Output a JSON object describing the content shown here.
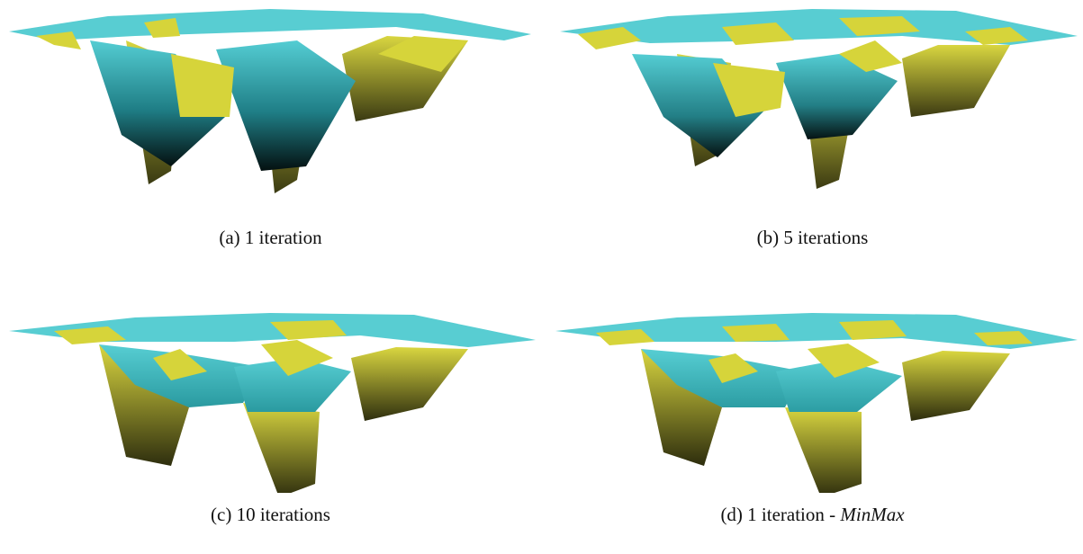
{
  "figure": {
    "panels": [
      {
        "id": "a",
        "caption": "(a) 1 iteration",
        "caption_italic": ""
      },
      {
        "id": "b",
        "caption": "(b) 5 iterations",
        "caption_italic": ""
      },
      {
        "id": "c",
        "caption": "(c) 10 iterations",
        "caption_italic": ""
      },
      {
        "id": "d",
        "caption": "(d) 1 iteration - ",
        "caption_italic": "MinMax"
      }
    ]
  },
  "colors": {
    "cyan": "#4fc9cf",
    "yellow": "#d6d43a",
    "dark": "#061414",
    "dark_yellow": "#3a3a10"
  }
}
